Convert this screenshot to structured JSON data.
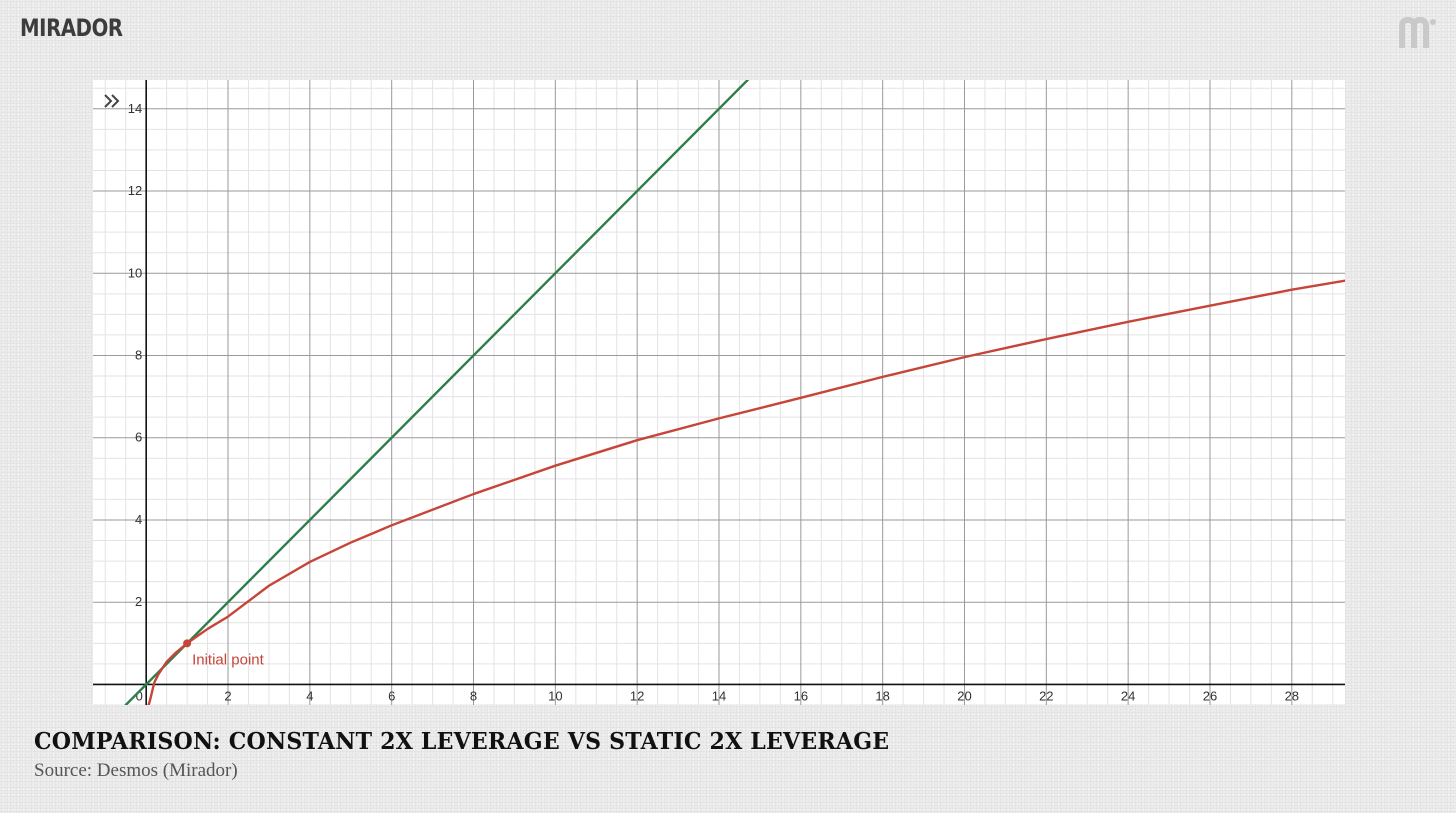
{
  "brand": {
    "name": "MIRADOR",
    "mark_icon": "mirador-m-logo-icon"
  },
  "caption": {
    "title": "COMPARISON: CONSTANT 2X LEVERAGE VS STATIC 2X LEVERAGE",
    "source": "Source: Desmos (Mirador)"
  },
  "chart_data": {
    "type": "line",
    "title": "",
    "xlabel": "",
    "ylabel": "",
    "xlim": [
      -1.3,
      29.3
    ],
    "ylim": [
      -0.5,
      14.7
    ],
    "x_ticks": [
      0,
      2,
      4,
      6,
      8,
      10,
      12,
      14,
      16,
      18,
      20,
      22,
      24,
      26,
      28
    ],
    "y_ticks": [
      2,
      4,
      6,
      8,
      10,
      12,
      14
    ],
    "origin_label": "0",
    "grid": true,
    "series": [
      {
        "color": "#2e7d4a",
        "points": [
          [
            -0.5,
            -0.5
          ],
          [
            14.8,
            14.8
          ]
        ]
      },
      {
        "color": "#c64538",
        "points": [
          [
            0.06,
            -0.5
          ],
          [
            0.1,
            -0.36
          ],
          [
            0.15,
            -0.15
          ],
          [
            0.2,
            0.05
          ],
          [
            0.3,
            0.25
          ],
          [
            0.4,
            0.4
          ],
          [
            0.5,
            0.55
          ],
          [
            0.7,
            0.75
          ],
          [
            1,
            1
          ],
          [
            1.5,
            1.35
          ],
          [
            2,
            1.65
          ],
          [
            3,
            2.4
          ],
          [
            4,
            2.98
          ],
          [
            5,
            3.45
          ],
          [
            6,
            3.87
          ],
          [
            8,
            4.63
          ],
          [
            10,
            5.32
          ],
          [
            12,
            5.94
          ],
          [
            14,
            6.47
          ],
          [
            16,
            6.97
          ],
          [
            18,
            7.48
          ],
          [
            20,
            7.96
          ],
          [
            22,
            8.4
          ],
          [
            24,
            8.82
          ],
          [
            26,
            9.21
          ],
          [
            28,
            9.6
          ],
          [
            29.3,
            9.82
          ]
        ]
      }
    ],
    "annotations": [
      {
        "text": "Initial point",
        "x": 1,
        "y": 1,
        "color": "#c64538"
      }
    ]
  }
}
